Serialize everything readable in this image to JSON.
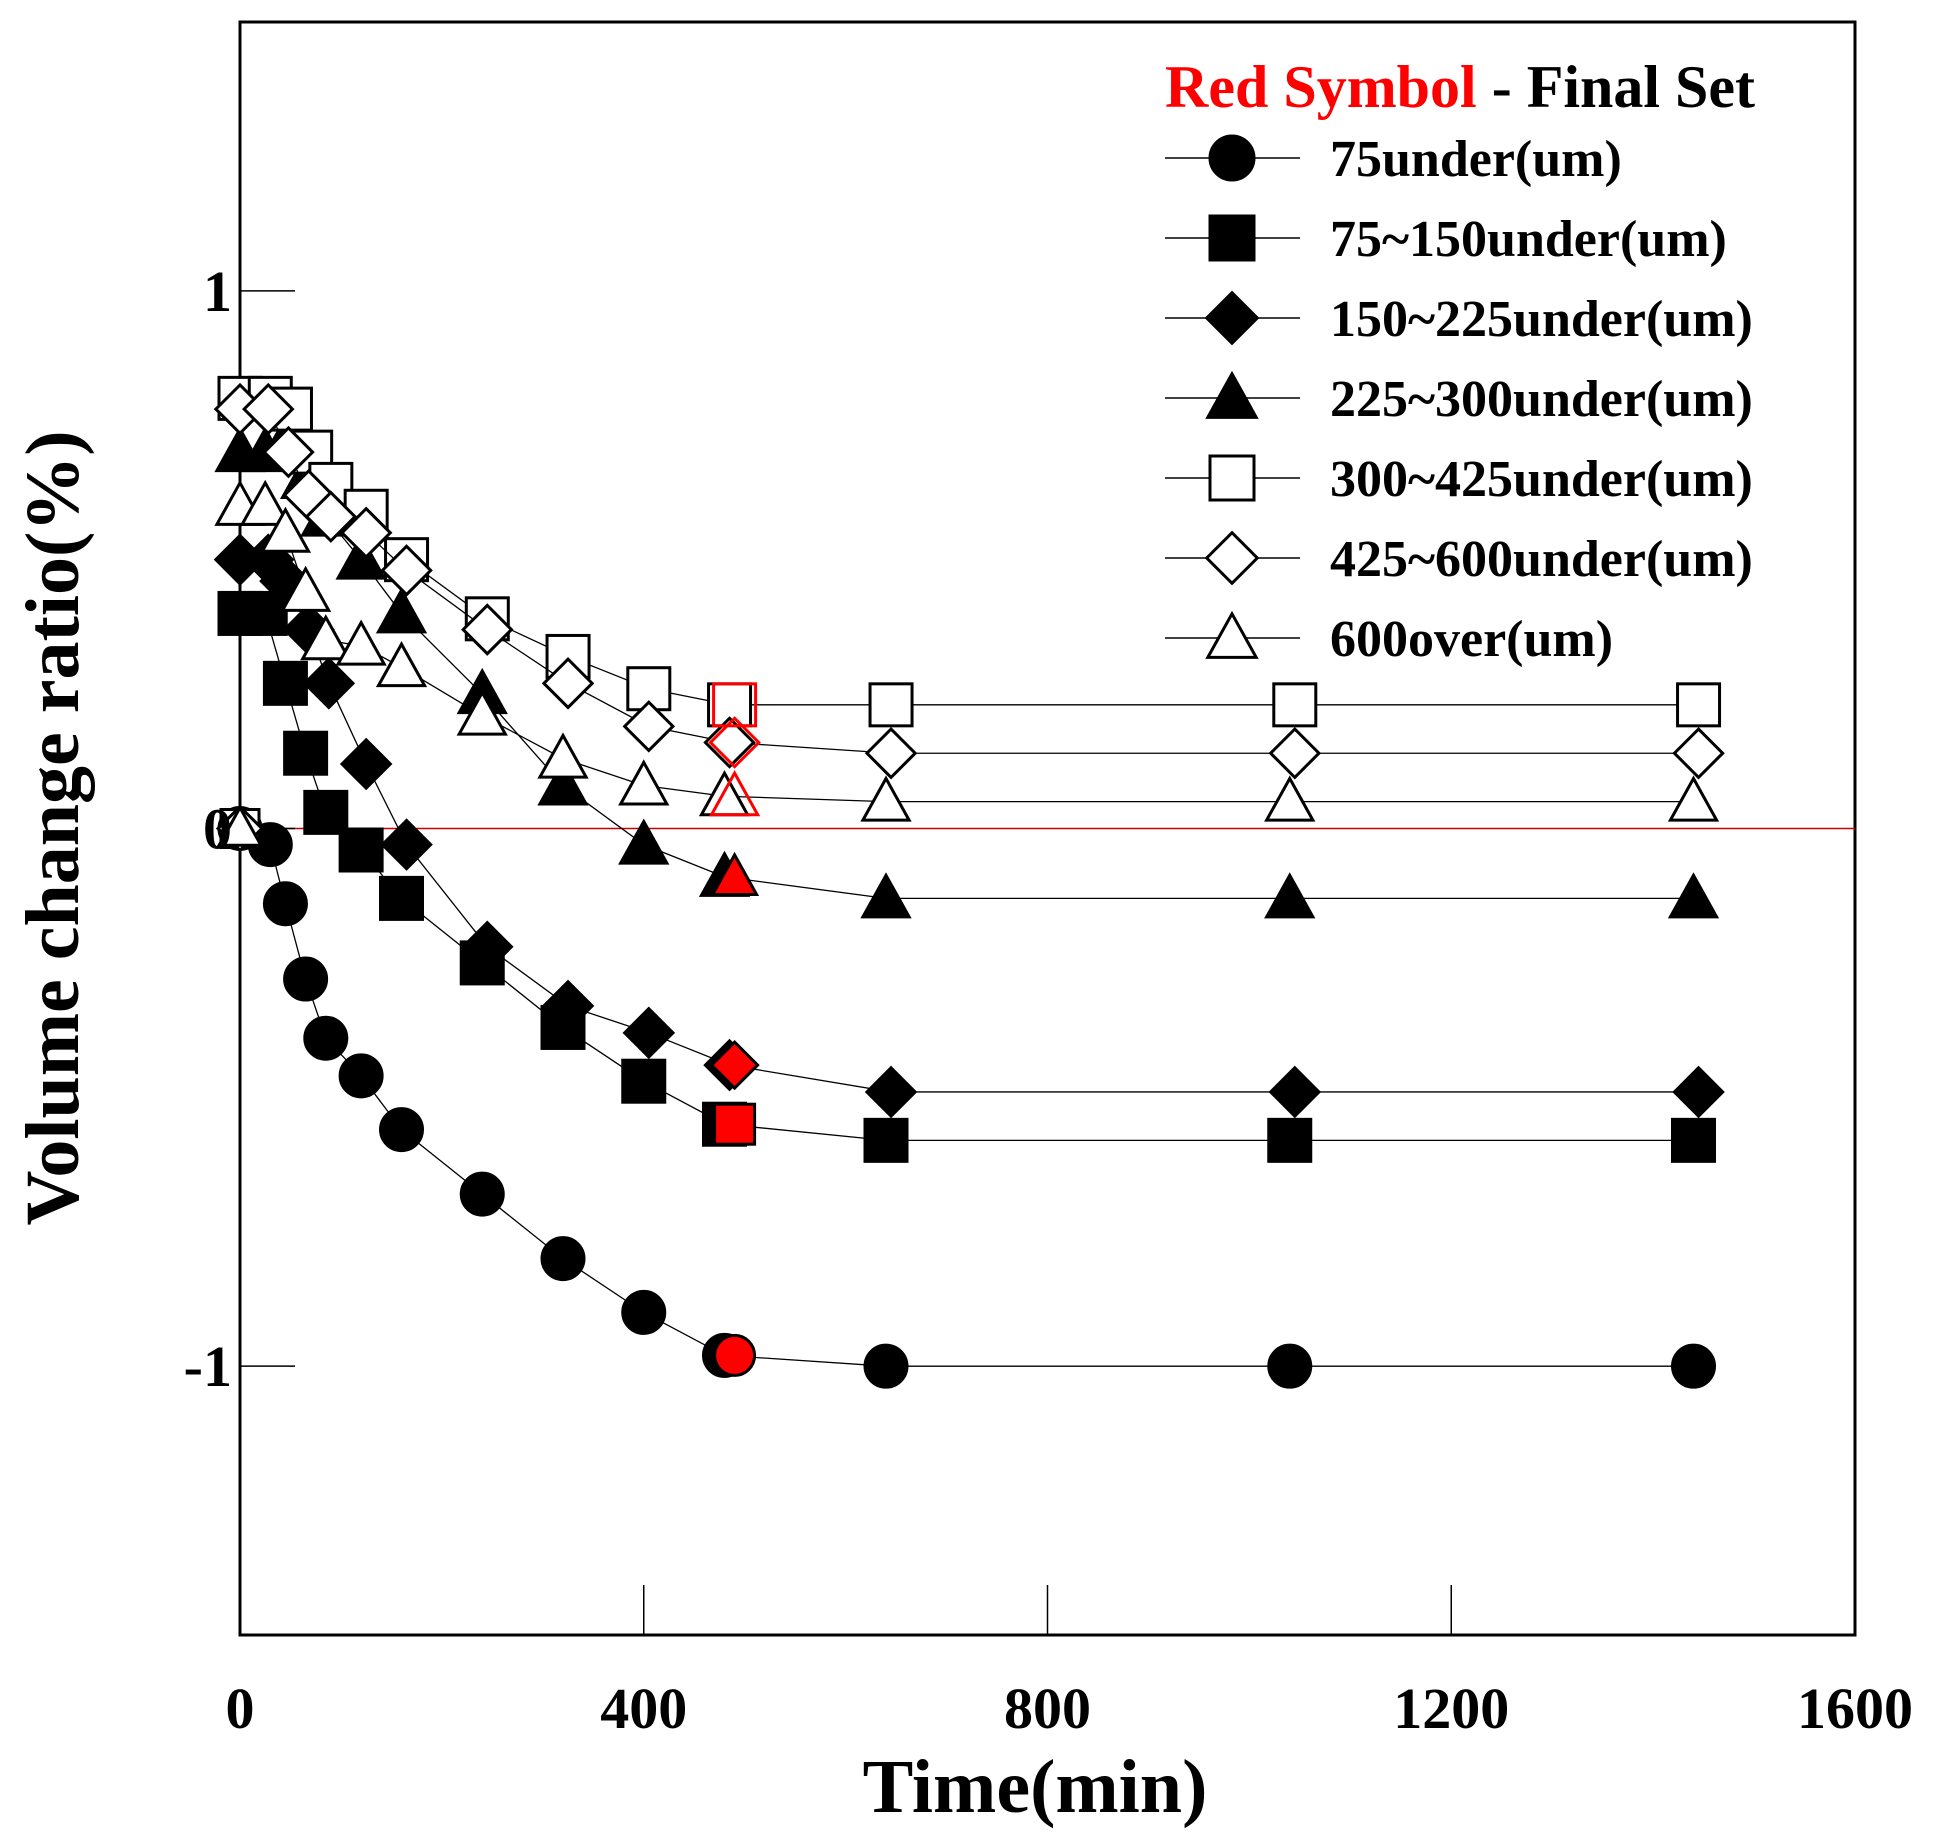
{
  "chart_data": {
    "type": "scatter",
    "xlabel": "Time(min)",
    "ylabel": "Volume change ratio(%)",
    "xlim": [
      0,
      1600
    ],
    "ylim": [
      -1.5,
      1.5
    ],
    "x_ticks": [
      0,
      400,
      800,
      1200,
      1600
    ],
    "y_ticks": [
      -1,
      0,
      1
    ],
    "x_tick_labels": [
      "0",
      "400",
      "800",
      "1200",
      "1600"
    ],
    "y_tick_labels": [
      "-1",
      "0",
      "1"
    ],
    "grid": false,
    "reference_line": {
      "y": 0,
      "color": "#cc0000"
    },
    "legend": {
      "placement": "top-right",
      "header_red": "Red Symbol",
      "header_rest": " - Final Set"
    },
    "final_set_color": "#ff0000",
    "series": [
      {
        "name": "75under(um)",
        "marker": "circle",
        "filled": true,
        "x": [
          0,
          30,
          45,
          65,
          85,
          120,
          160,
          240,
          320,
          400,
          480,
          640,
          1040,
          1440
        ],
        "y": [
          0,
          -0.03,
          -0.14,
          -0.28,
          -0.39,
          -0.46,
          -0.56,
          -0.68,
          -0.8,
          -0.9,
          -0.98,
          -1.0,
          -1.0,
          -1.0
        ],
        "final": {
          "x": 490,
          "y": -0.98
        }
      },
      {
        "name": "75~150under(um)",
        "marker": "square",
        "filled": true,
        "x": [
          0,
          25,
          45,
          65,
          85,
          120,
          160,
          240,
          320,
          400,
          480,
          640,
          1040,
          1440
        ],
        "y": [
          0.4,
          0.4,
          0.27,
          0.14,
          0.03,
          -0.04,
          -0.13,
          -0.25,
          -0.37,
          -0.47,
          -0.55,
          -0.58,
          -0.58,
          -0.58
        ],
        "final": {
          "x": 490,
          "y": -0.55
        }
      },
      {
        "name": "150~225under(um)",
        "marker": "diamond",
        "filled": true,
        "x": [
          0,
          28,
          45,
          68,
          88,
          125,
          165,
          245,
          325,
          405,
          485,
          645,
          1045,
          1445
        ],
        "y": [
          0.5,
          0.5,
          0.46,
          0.37,
          0.27,
          0.12,
          -0.03,
          -0.22,
          -0.33,
          -0.38,
          -0.44,
          -0.49,
          -0.49,
          -0.49
        ],
        "final": {
          "x": 490,
          "y": -0.44
        }
      },
      {
        "name": "225~300under(um)",
        "marker": "triangle",
        "filled": true,
        "x": [
          0,
          25,
          45,
          65,
          85,
          120,
          160,
          240,
          320,
          400,
          480,
          640,
          1040,
          1440
        ],
        "y": [
          0.7,
          0.7,
          0.72,
          0.65,
          0.58,
          0.5,
          0.4,
          0.25,
          0.08,
          -0.03,
          -0.09,
          -0.13,
          -0.13,
          -0.13
        ],
        "final": {
          "x": 490,
          "y": -0.09
        }
      },
      {
        "name": "300~425under(um)",
        "marker": "square",
        "filled": false,
        "x": [
          0,
          30,
          50,
          70,
          90,
          125,
          165,
          245,
          325,
          405,
          485,
          645,
          1045,
          1445
        ],
        "y": [
          0.8,
          0.8,
          0.78,
          0.7,
          0.64,
          0.59,
          0.5,
          0.39,
          0.32,
          0.26,
          0.23,
          0.23,
          0.23,
          0.23
        ],
        "final": {
          "x": 490,
          "y": 0.23
        }
      },
      {
        "name": "425~600under(um)",
        "marker": "diamond",
        "filled": false,
        "x": [
          0,
          28,
          48,
          68,
          90,
          125,
          165,
          245,
          325,
          405,
          485,
          645,
          1045,
          1445
        ],
        "y": [
          0.78,
          0.78,
          0.7,
          0.62,
          0.58,
          0.55,
          0.48,
          0.37,
          0.27,
          0.19,
          0.16,
          0.14,
          0.14,
          0.14
        ],
        "final": {
          "x": 490,
          "y": 0.16
        }
      },
      {
        "name": "600over(um)",
        "marker": "triangle",
        "filled": false,
        "x": [
          0,
          25,
          45,
          65,
          85,
          120,
          160,
          240,
          320,
          400,
          480,
          640,
          1040,
          1440
        ],
        "y": [
          0.6,
          0.6,
          0.55,
          0.44,
          0.35,
          0.34,
          0.3,
          0.21,
          0.13,
          0.08,
          0.06,
          0.05,
          0.05,
          0.05
        ],
        "final": {
          "x": 490,
          "y": 0.06
        }
      }
    ]
  }
}
